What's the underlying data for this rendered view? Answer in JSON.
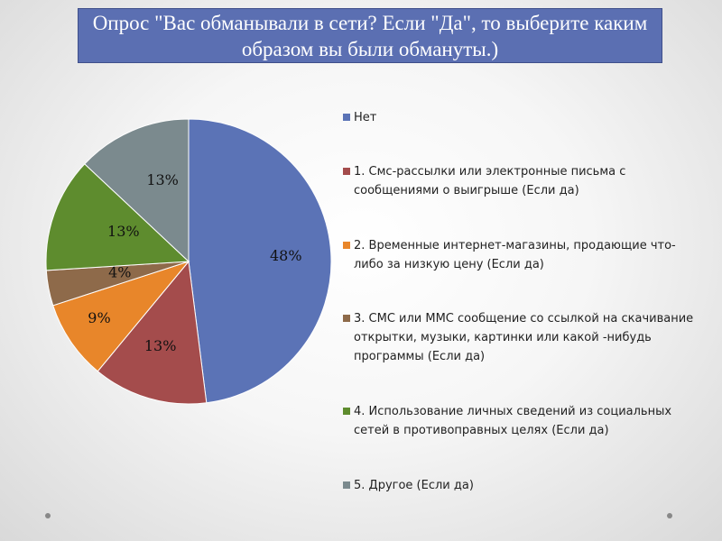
{
  "title": "Опрос \"Вас обманывали в сети? Если \"Да\", то выберите каким образом вы были обмануты.)",
  "chart_data": {
    "type": "pie",
    "slices": [
      {
        "label": "Нет",
        "value": 48,
        "value_label": "48%",
        "color": "#5b73b6"
      },
      {
        "label": "1. Смс-рассылки или электронные письма с сообщениями о выигрыше (Если да)",
        "value": 13,
        "value_label": "13%",
        "color": "#a44c4c"
      },
      {
        "label": "2. Временные интернет-магазины, продающие что-либо за низкую цену (Если да)",
        "value": 9,
        "value_label": "9%",
        "color": "#e8862a"
      },
      {
        "label": "3. СМС или ММС сообщение со ссылкой на скачивание открытки, музыки, картинки или какой -нибудь программы (Если да)",
        "value": 4,
        "value_label": "4%",
        "color": "#8e6a4a"
      },
      {
        "label": "4. Использование личных сведений из социальных сетей в противоправных целях (Если да)",
        "value": 13,
        "value_label": "13%",
        "color": "#5e8c2e"
      },
      {
        "label": "5. Другое (Если да)",
        "value": 13,
        "value_label": "13%",
        "color": "#7b8a8e"
      }
    ],
    "legend_position": "right"
  }
}
